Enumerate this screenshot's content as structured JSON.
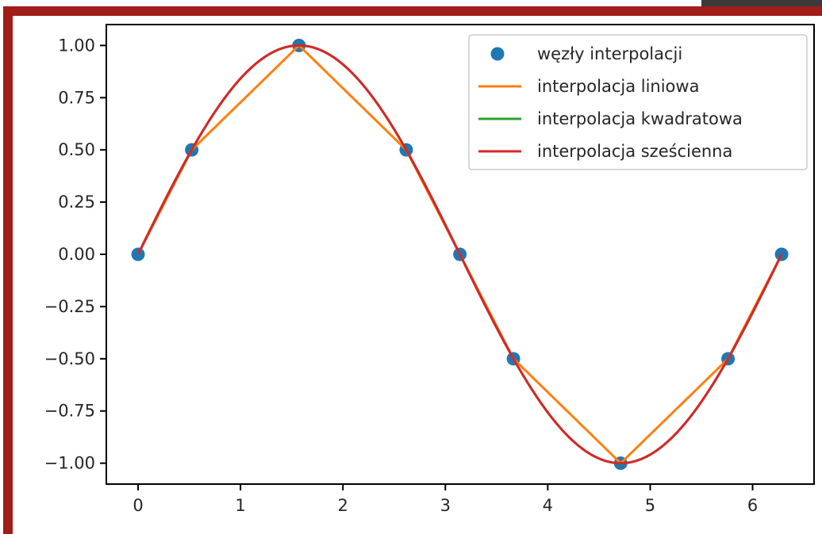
{
  "chart_data": {
    "type": "line",
    "title": "",
    "xlabel": "",
    "ylabel": "",
    "xlim": [
      -0.31,
      6.6
    ],
    "ylim": [
      -1.1,
      1.1
    ],
    "grid": false,
    "legend_position": "top-right",
    "x_ticks": [
      0,
      1,
      2,
      3,
      4,
      5,
      6
    ],
    "x_tick_labels": [
      "0",
      "1",
      "2",
      "3",
      "4",
      "5",
      "6"
    ],
    "y_ticks": [
      1.0,
      0.75,
      0.5,
      0.25,
      0.0,
      -0.25,
      -0.5,
      -0.75,
      -1.0
    ],
    "y_tick_labels": [
      "1.00",
      "0.75",
      "0.50",
      "0.25",
      "0.00",
      "−0.25",
      "−0.50",
      "−0.75",
      "−1.00"
    ],
    "series": [
      {
        "name": "węzły interpolacji",
        "kind": "scatter",
        "color": "#1f77b4",
        "x": [
          0,
          0.524,
          1.571,
          2.618,
          3.142,
          3.665,
          4.712,
          5.76,
          6.283
        ],
        "y": [
          0,
          0.5,
          1.0,
          0.5,
          0.0,
          -0.5,
          -1.0,
          -0.5,
          0.0
        ]
      },
      {
        "name": "interpolacja liniowa",
        "kind": "line",
        "color": "#ff7f0e",
        "x": [
          0,
          0.524,
          1.571,
          2.618,
          3.142,
          3.665,
          4.712,
          5.76,
          6.283
        ],
        "y": [
          0,
          0.5,
          1.0,
          0.5,
          0.0,
          -0.5,
          -1.0,
          -0.5,
          0.0
        ]
      },
      {
        "name": "interpolacja kwadratowa",
        "kind": "line",
        "color": "#2ca02c",
        "function": "sin",
        "x_range": [
          0,
          6.283
        ]
      },
      {
        "name": "interpolacja sześcienna",
        "kind": "line",
        "color": "#d62728",
        "function": "sin",
        "x_range": [
          0,
          6.283
        ]
      }
    ]
  }
}
